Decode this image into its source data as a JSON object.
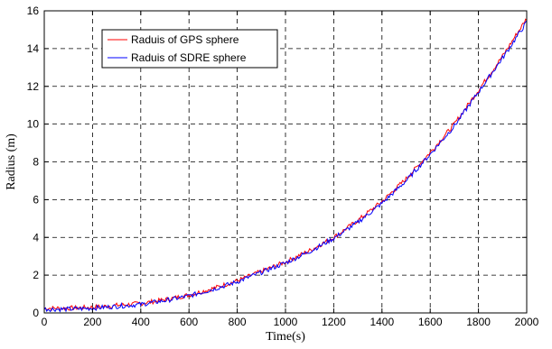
{
  "chart_data": {
    "type": "line",
    "xlabel": "Time(s)",
    "ylabel": "Radius (m)",
    "xlim": [
      0,
      2000
    ],
    "ylim": [
      0,
      16
    ],
    "xticks": [
      0,
      200,
      400,
      600,
      800,
      1000,
      1200,
      1400,
      1600,
      1800,
      2000
    ],
    "yticks": [
      0,
      2,
      4,
      6,
      8,
      10,
      12,
      14,
      16
    ],
    "grid": true,
    "grid_style": "dashed",
    "legend_position": "top-left",
    "series": [
      {
        "name": "Raduis of GPS sphere",
        "color": "#ff0000",
        "x": [
          0,
          100,
          200,
          300,
          400,
          500,
          600,
          700,
          800,
          900,
          1000,
          1100,
          1200,
          1300,
          1400,
          1500,
          1600,
          1700,
          1800,
          1900,
          2000
        ],
        "y": [
          0.25,
          0.25,
          0.3,
          0.4,
          0.5,
          0.7,
          0.95,
          1.3,
          1.7,
          2.2,
          2.7,
          3.3,
          4.0,
          4.9,
          5.9,
          7.1,
          8.5,
          10.0,
          11.8,
          13.6,
          15.6
        ]
      },
      {
        "name": "Raduis of SDRE sphere",
        "color": "#0000ff",
        "x": [
          0,
          100,
          200,
          300,
          400,
          500,
          600,
          700,
          800,
          900,
          1000,
          1100,
          1200,
          1300,
          1400,
          1500,
          1600,
          1700,
          1800,
          1900,
          2000
        ],
        "y": [
          0.2,
          0.2,
          0.25,
          0.35,
          0.45,
          0.65,
          0.9,
          1.25,
          1.65,
          2.15,
          2.65,
          3.25,
          3.95,
          4.8,
          5.8,
          7.0,
          8.4,
          9.9,
          11.7,
          13.5,
          15.4
        ]
      }
    ]
  }
}
